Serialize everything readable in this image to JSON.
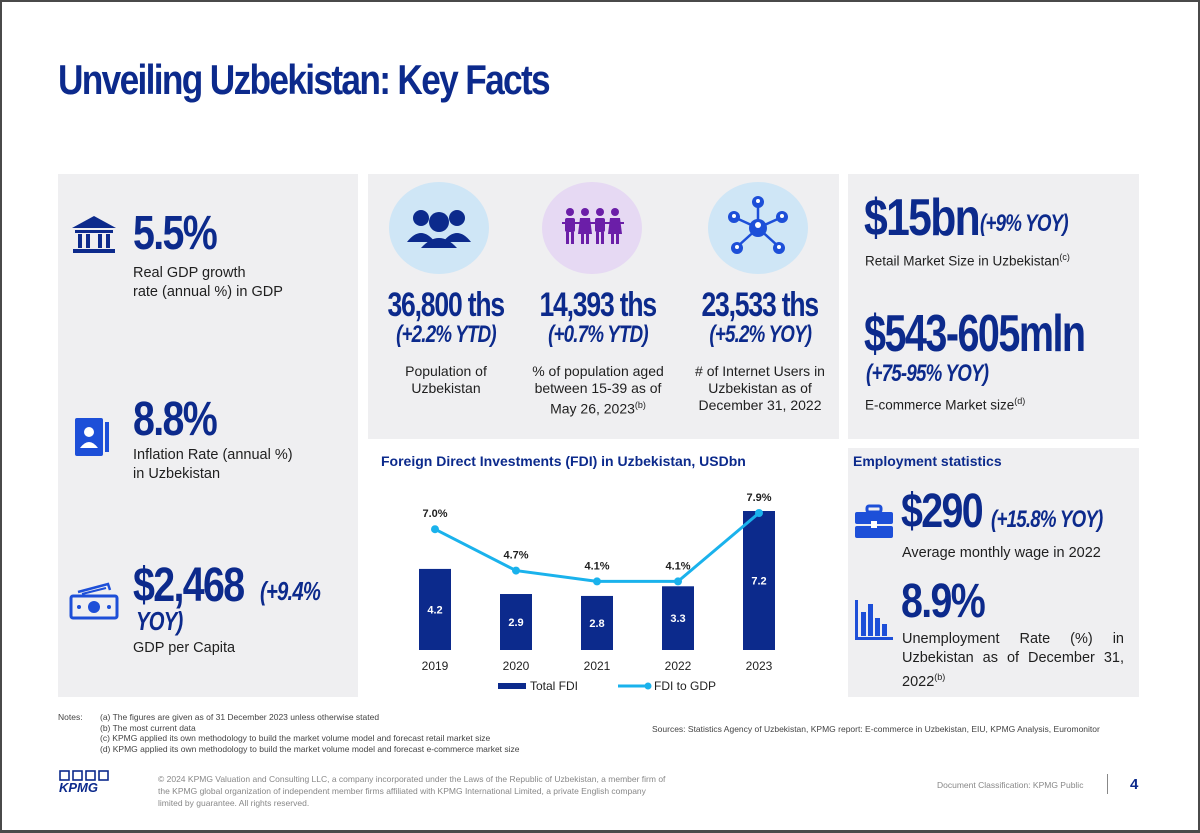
{
  "title": "Unveiling Uzbekistan: Key Facts",
  "left_panel": {
    "gdp_growth": {
      "value": "5.5%",
      "label_line1": "Real GDP growth",
      "label_line2": "rate (annual %) in GDP",
      "icon": "bank-icon"
    },
    "inflation": {
      "value": "8.8%",
      "label_line1": "Inflation Rate (annual %)",
      "label_line2": "in Uzbekistan",
      "icon": "contact-card-icon"
    },
    "gdp_per_capita": {
      "value": "$2,468",
      "yoy_line1": "(+9.4%",
      "yoy_line2": "YOY)",
      "label": "GDP per Capita",
      "icon": "cash-icon"
    }
  },
  "top_stats": [
    {
      "value": "36,800 ths",
      "change": "(+2.2% YTD)",
      "label_lines": [
        "Population of",
        "Uzbekistan"
      ],
      "sup": "",
      "icon": "people-group-icon",
      "circle_color": "#cfe6f6"
    },
    {
      "value": "14,393 ths",
      "change": "(+0.7% YTD)",
      "label_lines": [
        "% of population aged",
        "between 15-39 as of",
        "May 26, 2023"
      ],
      "sup": "(b)",
      "icon": "young-people-icon",
      "circle_color": "#e6d9f3"
    },
    {
      "value": "23,533 ths",
      "change": "(+5.2% YOY)",
      "label_lines": [
        "# of Internet Users in",
        "Uzbekistan as of",
        "December 31, 2022"
      ],
      "sup": "",
      "icon": "network-users-icon",
      "circle_color": "#cfe6f6"
    }
  ],
  "right_top": {
    "retail": {
      "value": "$15bn",
      "yoy": "(+9% YOY)",
      "label": "Retail Market Size in Uzbekistan",
      "sup": "(c)"
    },
    "ecommerce": {
      "value": "$543-605mln",
      "yoy": "(+75-95% YOY)",
      "label": "E-commerce Market size",
      "sup": "(d)"
    }
  },
  "fdi_chart_title": "Foreign Direct Investments (FDI) in Uzbekistan, USDbn",
  "chart_data": {
    "type": "bar",
    "title": "Foreign Direct Investments (FDI) in Uzbekistan, USDbn",
    "categories": [
      "2019",
      "2020",
      "2021",
      "2022",
      "2023"
    ],
    "series": [
      {
        "name": "Total FDI",
        "type": "bar",
        "values": [
          4.2,
          2.9,
          2.8,
          3.3,
          7.2
        ],
        "labels": [
          "4.2",
          "2.9",
          "2.8",
          "3.3",
          "7.2"
        ]
      },
      {
        "name": "FDI to GDP",
        "type": "line",
        "values": [
          7.0,
          4.7,
          4.1,
          4.1,
          7.9
        ],
        "labels": [
          "7.0%",
          "4.7%",
          "4.1%",
          "4.1%",
          "7.9%"
        ]
      }
    ],
    "legend": "bottom",
    "grid": false,
    "colors": {
      "bar": "#0c2a8c",
      "line": "#1ab2ec"
    }
  },
  "employment": {
    "title": "Employment statistics",
    "wage": {
      "value": "$290",
      "yoy": "(+15.8% YOY)",
      "label": "Average monthly wage in 2022",
      "icon": "briefcase-icon"
    },
    "unemployment": {
      "value": "8.9%",
      "label_line1": "Unemployment Rate (%) in",
      "label_line2": "Uzbekistan as of December 31,",
      "label_line3": "2022",
      "sup": "(b)",
      "icon": "bar-chart-icon"
    }
  },
  "notes": {
    "label": "Notes:",
    "items": [
      "(a) The figures are given as of 31 December 2023 unless otherwise stated",
      "(b) The most current data",
      "(c) KPMG applied its own methodology to build the market volume model and forecast retail market size",
      "(d) KPMG applied its own methodology to build the market volume model and forecast e-commerce market size"
    ],
    "sources": "Sources:  Statistics Agency of Uzbekistan, KPMG report: E-commerce in Uzbekistan, EIU, KPMG Analysis, Euromonitor"
  },
  "footer": {
    "logo": "KPMG",
    "copyright_lines": [
      "© 2024 KPMG Valuation and Consulting LLC, a company incorporated under the Laws of the Republic of Uzbekistan, a member firm of",
      "the KPMG global organization of independent member firms affiliated with KPMG International Limited, a private English company",
      "limited by guarantee. All rights reserved."
    ],
    "classification": "Document Classification: KPMG Public",
    "page_number": "4"
  },
  "colors": {
    "navy": "#0c2a8c",
    "light_blue": "#1ab2ec",
    "panel_gray": "#efeff1"
  }
}
